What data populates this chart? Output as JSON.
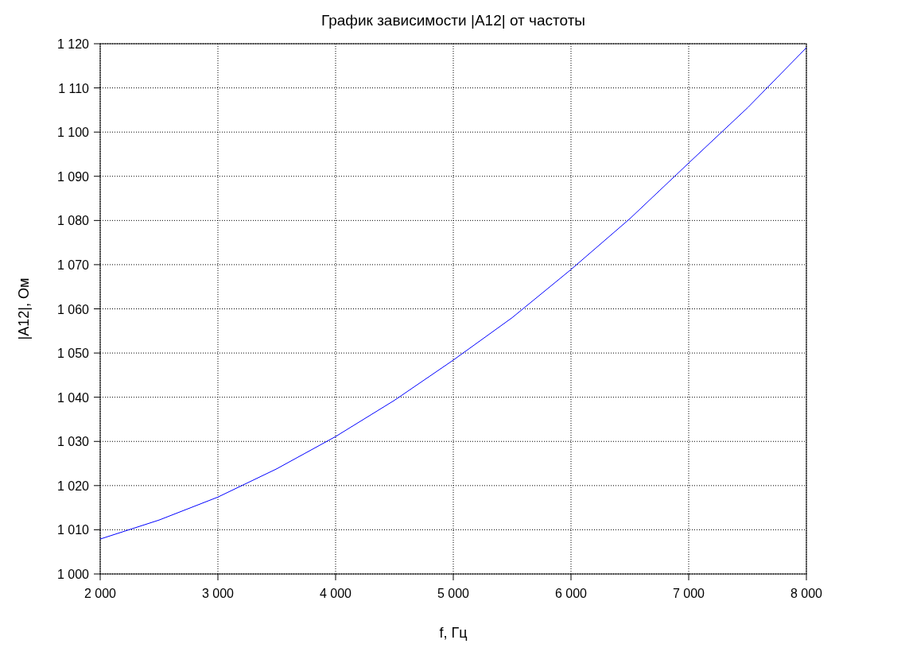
{
  "chart_data": {
    "type": "line",
    "title": "График зависимости |A12| от частоты",
    "xlabel": "f, Гц",
    "ylabel": "|A12|, Ом",
    "x": [
      2000,
      2500,
      3000,
      3500,
      4000,
      4500,
      5000,
      5500,
      6000,
      6500,
      7000,
      7500,
      8000
    ],
    "series": [
      {
        "color": "#0000ff",
        "values": [
          1007.9,
          1012.2,
          1017.4,
          1023.8,
          1031.1,
          1039.3,
          1048.4,
          1058.0,
          1068.9,
          1080.4,
          1093.0,
          1105.5,
          1119.1
        ]
      }
    ],
    "xlim": [
      2000,
      8000
    ],
    "ylim": [
      1000,
      1120
    ],
    "xticks": [
      {
        "value": 2000,
        "label": "2 000"
      },
      {
        "value": 3000,
        "label": "3 000"
      },
      {
        "value": 4000,
        "label": "4 000"
      },
      {
        "value": 5000,
        "label": "5 000"
      },
      {
        "value": 6000,
        "label": "6 000"
      },
      {
        "value": 7000,
        "label": "7 000"
      },
      {
        "value": 8000,
        "label": "8 000"
      }
    ],
    "yticks": [
      {
        "value": 1000,
        "label": "1 000"
      },
      {
        "value": 1010,
        "label": "1 010"
      },
      {
        "value": 1020,
        "label": "1 020"
      },
      {
        "value": 1030,
        "label": "1 030"
      },
      {
        "value": 1040,
        "label": "1 040"
      },
      {
        "value": 1050,
        "label": "1 050"
      },
      {
        "value": 1060,
        "label": "1 060"
      },
      {
        "value": 1070,
        "label": "1 070"
      },
      {
        "value": 1080,
        "label": "1 080"
      },
      {
        "value": 1090,
        "label": "1 090"
      },
      {
        "value": 1100,
        "label": "1 100"
      },
      {
        "value": 1110,
        "label": "1 110"
      },
      {
        "value": 1120,
        "label": "1 120"
      }
    ],
    "grid": true,
    "line_style": "solid",
    "marker": "none"
  }
}
